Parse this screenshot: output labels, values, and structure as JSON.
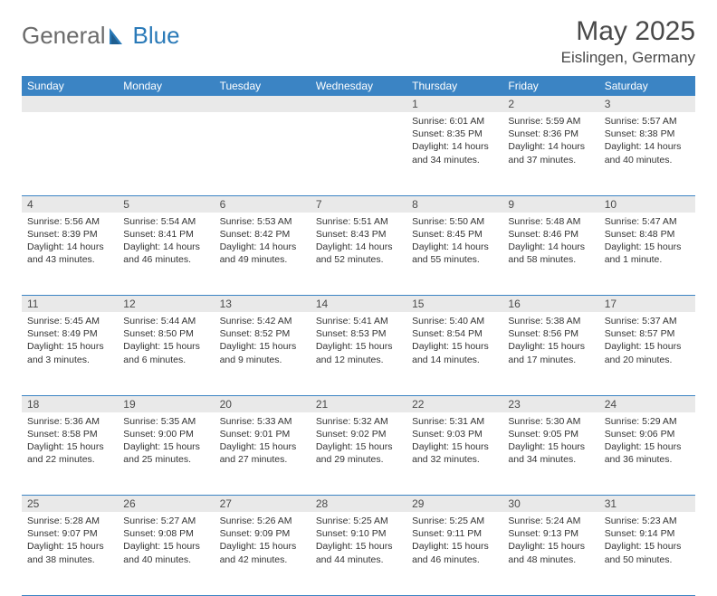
{
  "brand": {
    "part1": "General",
    "part2": "Blue"
  },
  "title": "May 2025",
  "location": "Eislingen, Germany",
  "colors": {
    "header_bg": "#3b84c4",
    "header_fg": "#ffffff",
    "daynum_bg": "#e9e9e9",
    "rule": "#3b84c4",
    "brand_gray": "#6b6b6b",
    "brand_blue": "#2a7ab8"
  },
  "weekdays": [
    "Sunday",
    "Monday",
    "Tuesday",
    "Wednesday",
    "Thursday",
    "Friday",
    "Saturday"
  ],
  "weeks": [
    [
      null,
      null,
      null,
      null,
      {
        "n": "1",
        "sr": "Sunrise: 6:01 AM",
        "ss": "Sunset: 8:35 PM",
        "dl": "Daylight: 14 hours and 34 minutes."
      },
      {
        "n": "2",
        "sr": "Sunrise: 5:59 AM",
        "ss": "Sunset: 8:36 PM",
        "dl": "Daylight: 14 hours and 37 minutes."
      },
      {
        "n": "3",
        "sr": "Sunrise: 5:57 AM",
        "ss": "Sunset: 8:38 PM",
        "dl": "Daylight: 14 hours and 40 minutes."
      }
    ],
    [
      {
        "n": "4",
        "sr": "Sunrise: 5:56 AM",
        "ss": "Sunset: 8:39 PM",
        "dl": "Daylight: 14 hours and 43 minutes."
      },
      {
        "n": "5",
        "sr": "Sunrise: 5:54 AM",
        "ss": "Sunset: 8:41 PM",
        "dl": "Daylight: 14 hours and 46 minutes."
      },
      {
        "n": "6",
        "sr": "Sunrise: 5:53 AM",
        "ss": "Sunset: 8:42 PM",
        "dl": "Daylight: 14 hours and 49 minutes."
      },
      {
        "n": "7",
        "sr": "Sunrise: 5:51 AM",
        "ss": "Sunset: 8:43 PM",
        "dl": "Daylight: 14 hours and 52 minutes."
      },
      {
        "n": "8",
        "sr": "Sunrise: 5:50 AM",
        "ss": "Sunset: 8:45 PM",
        "dl": "Daylight: 14 hours and 55 minutes."
      },
      {
        "n": "9",
        "sr": "Sunrise: 5:48 AM",
        "ss": "Sunset: 8:46 PM",
        "dl": "Daylight: 14 hours and 58 minutes."
      },
      {
        "n": "10",
        "sr": "Sunrise: 5:47 AM",
        "ss": "Sunset: 8:48 PM",
        "dl": "Daylight: 15 hours and 1 minute."
      }
    ],
    [
      {
        "n": "11",
        "sr": "Sunrise: 5:45 AM",
        "ss": "Sunset: 8:49 PM",
        "dl": "Daylight: 15 hours and 3 minutes."
      },
      {
        "n": "12",
        "sr": "Sunrise: 5:44 AM",
        "ss": "Sunset: 8:50 PM",
        "dl": "Daylight: 15 hours and 6 minutes."
      },
      {
        "n": "13",
        "sr": "Sunrise: 5:42 AM",
        "ss": "Sunset: 8:52 PM",
        "dl": "Daylight: 15 hours and 9 minutes."
      },
      {
        "n": "14",
        "sr": "Sunrise: 5:41 AM",
        "ss": "Sunset: 8:53 PM",
        "dl": "Daylight: 15 hours and 12 minutes."
      },
      {
        "n": "15",
        "sr": "Sunrise: 5:40 AM",
        "ss": "Sunset: 8:54 PM",
        "dl": "Daylight: 15 hours and 14 minutes."
      },
      {
        "n": "16",
        "sr": "Sunrise: 5:38 AM",
        "ss": "Sunset: 8:56 PM",
        "dl": "Daylight: 15 hours and 17 minutes."
      },
      {
        "n": "17",
        "sr": "Sunrise: 5:37 AM",
        "ss": "Sunset: 8:57 PM",
        "dl": "Daylight: 15 hours and 20 minutes."
      }
    ],
    [
      {
        "n": "18",
        "sr": "Sunrise: 5:36 AM",
        "ss": "Sunset: 8:58 PM",
        "dl": "Daylight: 15 hours and 22 minutes."
      },
      {
        "n": "19",
        "sr": "Sunrise: 5:35 AM",
        "ss": "Sunset: 9:00 PM",
        "dl": "Daylight: 15 hours and 25 minutes."
      },
      {
        "n": "20",
        "sr": "Sunrise: 5:33 AM",
        "ss": "Sunset: 9:01 PM",
        "dl": "Daylight: 15 hours and 27 minutes."
      },
      {
        "n": "21",
        "sr": "Sunrise: 5:32 AM",
        "ss": "Sunset: 9:02 PM",
        "dl": "Daylight: 15 hours and 29 minutes."
      },
      {
        "n": "22",
        "sr": "Sunrise: 5:31 AM",
        "ss": "Sunset: 9:03 PM",
        "dl": "Daylight: 15 hours and 32 minutes."
      },
      {
        "n": "23",
        "sr": "Sunrise: 5:30 AM",
        "ss": "Sunset: 9:05 PM",
        "dl": "Daylight: 15 hours and 34 minutes."
      },
      {
        "n": "24",
        "sr": "Sunrise: 5:29 AM",
        "ss": "Sunset: 9:06 PM",
        "dl": "Daylight: 15 hours and 36 minutes."
      }
    ],
    [
      {
        "n": "25",
        "sr": "Sunrise: 5:28 AM",
        "ss": "Sunset: 9:07 PM",
        "dl": "Daylight: 15 hours and 38 minutes."
      },
      {
        "n": "26",
        "sr": "Sunrise: 5:27 AM",
        "ss": "Sunset: 9:08 PM",
        "dl": "Daylight: 15 hours and 40 minutes."
      },
      {
        "n": "27",
        "sr": "Sunrise: 5:26 AM",
        "ss": "Sunset: 9:09 PM",
        "dl": "Daylight: 15 hours and 42 minutes."
      },
      {
        "n": "28",
        "sr": "Sunrise: 5:25 AM",
        "ss": "Sunset: 9:10 PM",
        "dl": "Daylight: 15 hours and 44 minutes."
      },
      {
        "n": "29",
        "sr": "Sunrise: 5:25 AM",
        "ss": "Sunset: 9:11 PM",
        "dl": "Daylight: 15 hours and 46 minutes."
      },
      {
        "n": "30",
        "sr": "Sunrise: 5:24 AM",
        "ss": "Sunset: 9:13 PM",
        "dl": "Daylight: 15 hours and 48 minutes."
      },
      {
        "n": "31",
        "sr": "Sunrise: 5:23 AM",
        "ss": "Sunset: 9:14 PM",
        "dl": "Daylight: 15 hours and 50 minutes."
      }
    ]
  ]
}
